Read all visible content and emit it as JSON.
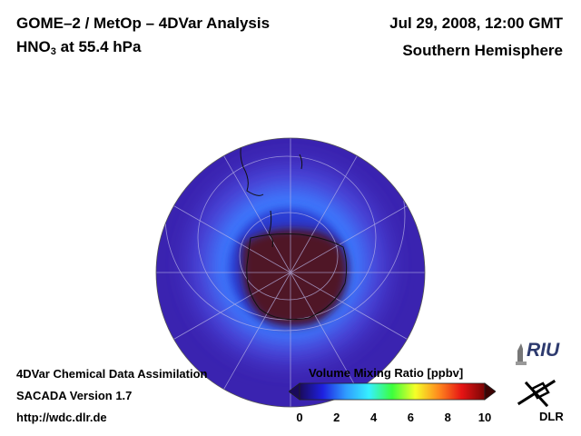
{
  "header": {
    "title_line1": "GOME–2 / MetOp – 4DVar Analysis",
    "title_line2_main": "HNO",
    "title_line2_sub": "3",
    "title_line2_rest": " at 55.4 hPa",
    "date": "Jul 29, 2008, 12:00 GMT",
    "region": "Southern Hemisphere"
  },
  "footer": {
    "line1": "4DVar Chemical Data Assimilation",
    "line2": "SACADA Version 1.7",
    "line3": "http://wdc.dlr.de"
  },
  "colorbar": {
    "title": "Volume Mixing Ratio [ppbv]",
    "ticks": [
      "0",
      "2",
      "4",
      "6",
      "8",
      "10"
    ],
    "min": 0,
    "max": 10,
    "colors": [
      "#1a0a5a",
      "#1e20e0",
      "#2f9bff",
      "#36f0ff",
      "#3cff3c",
      "#f5ff28",
      "#ff8a1e",
      "#e61414",
      "#7a0505"
    ]
  },
  "logos": {
    "riu": "RIU",
    "dlr": "DLR"
  },
  "map": {
    "background_color": "#3a23b0",
    "ring_color": "#3d7cff",
    "core_color": "#501226"
  }
}
